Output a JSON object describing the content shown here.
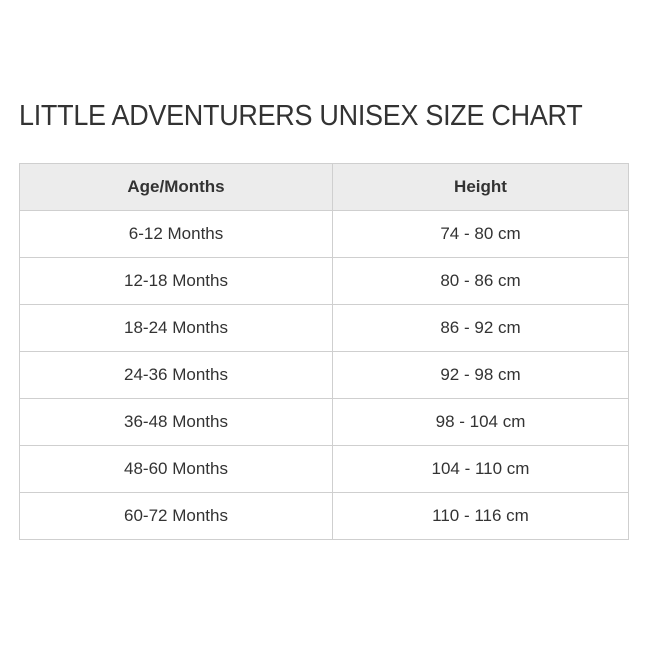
{
  "title": "LITTLE ADVENTURERS UNISEX SIZE CHART",
  "table": {
    "headers": [
      "Age/Months",
      "Height"
    ],
    "rows": [
      [
        "6-12 Months",
        "74 - 80 cm"
      ],
      [
        "12-18 Months",
        "80 - 86 cm"
      ],
      [
        "18-24 Months",
        "86 - 92 cm"
      ],
      [
        "24-36 Months",
        "92 - 98 cm"
      ],
      [
        "36-48 Months",
        "98 - 104 cm"
      ],
      [
        "48-60 Months",
        "104 - 110 cm"
      ],
      [
        "60-72 Months",
        "110 - 116 cm"
      ]
    ]
  }
}
